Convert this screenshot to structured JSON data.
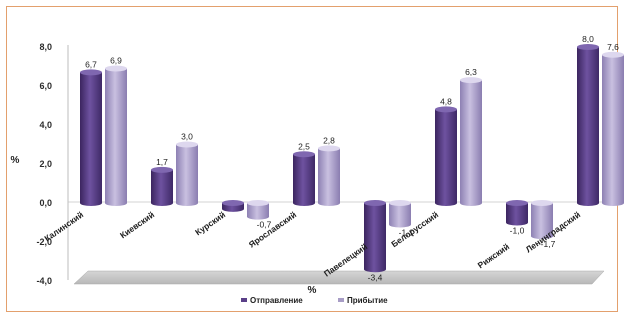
{
  "chart_data": {
    "type": "bar",
    "title": "",
    "ylabel": "%",
    "xlabel": "%",
    "ylim": [
      -4,
      8
    ],
    "yticks": [
      "8,0",
      "6,0",
      "4,0",
      "2,0",
      "0,0",
      "-2,0",
      "-4,0"
    ],
    "grid": false,
    "legend_position": "bottom",
    "categories": [
      "Калинский",
      "Киевский",
      "Курский",
      "Ярославский",
      "Павелецкий",
      "Белорусский",
      "Рижский",
      "Ленинградский"
    ],
    "series": [
      {
        "name": "Отправление",
        "color": "#5a3f88",
        "values": [
          6.7,
          1.7,
          -0.3,
          2.5,
          -3.4,
          4.8,
          -1.0,
          8.0
        ],
        "labels": [
          "6,7",
          "1,7",
          "",
          "2,5",
          "-3,4",
          "4,8",
          "-1,0",
          "8,0"
        ]
      },
      {
        "name": "Прибытие",
        "color": "#a89dc6",
        "values": [
          6.9,
          3.0,
          -0.7,
          2.8,
          -1.1,
          6.3,
          -1.7,
          7.6
        ],
        "labels": [
          "6,9",
          "3,0",
          "-0,7",
          "2,8",
          "-1,1",
          "6,3",
          "-1,7",
          "7,6"
        ]
      }
    ]
  }
}
